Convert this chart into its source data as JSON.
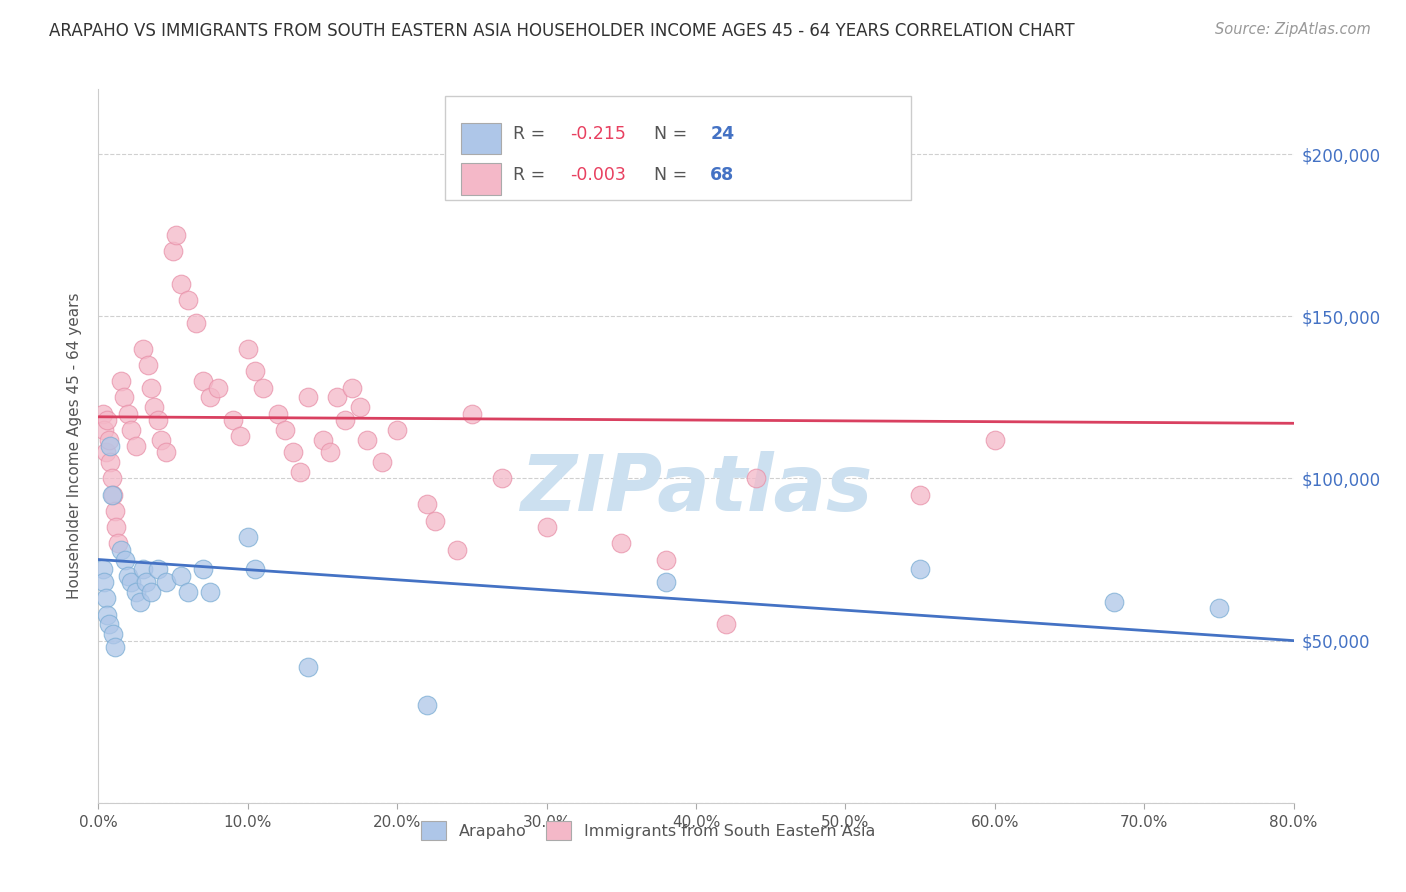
{
  "title": "ARAPAHO VS IMMIGRANTS FROM SOUTH EASTERN ASIA HOUSEHOLDER INCOME AGES 45 - 64 YEARS CORRELATION CHART",
  "source": "Source: ZipAtlas.com",
  "ylabel": "Householder Income Ages 45 - 64 years",
  "xlabel_ticks": [
    "0.0%",
    "10.0%",
    "20.0%",
    "30.0%",
    "40.0%",
    "50.0%",
    "60.0%",
    "70.0%",
    "80.0%"
  ],
  "xlabel_vals": [
    0,
    10,
    20,
    30,
    40,
    50,
    60,
    70,
    80
  ],
  "ytick_vals": [
    0,
    50000,
    100000,
    150000,
    200000
  ],
  "right_ytick_labels": [
    "$50,000",
    "$100,000",
    "$150,000",
    "$200,000"
  ],
  "right_ytick_vals": [
    50000,
    100000,
    150000,
    200000
  ],
  "xlim": [
    0,
    80
  ],
  "ylim": [
    0,
    220000
  ],
  "arapaho_points": [
    [
      0.3,
      72000
    ],
    [
      0.4,
      68000
    ],
    [
      0.5,
      63000
    ],
    [
      0.6,
      58000
    ],
    [
      0.7,
      55000
    ],
    [
      0.8,
      110000
    ],
    [
      0.9,
      95000
    ],
    [
      1.0,
      52000
    ],
    [
      1.1,
      48000
    ],
    [
      1.5,
      78000
    ],
    [
      1.8,
      75000
    ],
    [
      2.0,
      70000
    ],
    [
      2.2,
      68000
    ],
    [
      2.5,
      65000
    ],
    [
      2.8,
      62000
    ],
    [
      3.0,
      72000
    ],
    [
      3.2,
      68000
    ],
    [
      3.5,
      65000
    ],
    [
      4.0,
      72000
    ],
    [
      4.5,
      68000
    ],
    [
      5.5,
      70000
    ],
    [
      6.0,
      65000
    ],
    [
      7.0,
      72000
    ],
    [
      7.5,
      65000
    ],
    [
      10.0,
      82000
    ],
    [
      10.5,
      72000
    ],
    [
      14.0,
      42000
    ],
    [
      22.0,
      30000
    ],
    [
      38.0,
      68000
    ],
    [
      55.0,
      72000
    ],
    [
      68.0,
      62000
    ],
    [
      75.0,
      60000
    ]
  ],
  "sea_points": [
    [
      0.3,
      120000
    ],
    [
      0.4,
      115000
    ],
    [
      0.5,
      108000
    ],
    [
      0.6,
      118000
    ],
    [
      0.7,
      112000
    ],
    [
      0.8,
      105000
    ],
    [
      0.9,
      100000
    ],
    [
      1.0,
      95000
    ],
    [
      1.1,
      90000
    ],
    [
      1.2,
      85000
    ],
    [
      1.3,
      80000
    ],
    [
      1.5,
      130000
    ],
    [
      1.7,
      125000
    ],
    [
      2.0,
      120000
    ],
    [
      2.2,
      115000
    ],
    [
      2.5,
      110000
    ],
    [
      3.0,
      140000
    ],
    [
      3.3,
      135000
    ],
    [
      3.5,
      128000
    ],
    [
      3.7,
      122000
    ],
    [
      4.0,
      118000
    ],
    [
      4.2,
      112000
    ],
    [
      4.5,
      108000
    ],
    [
      5.0,
      170000
    ],
    [
      5.2,
      175000
    ],
    [
      5.5,
      160000
    ],
    [
      6.0,
      155000
    ],
    [
      6.5,
      148000
    ],
    [
      7.0,
      130000
    ],
    [
      7.5,
      125000
    ],
    [
      8.0,
      128000
    ],
    [
      9.0,
      118000
    ],
    [
      9.5,
      113000
    ],
    [
      10.0,
      140000
    ],
    [
      10.5,
      133000
    ],
    [
      11.0,
      128000
    ],
    [
      12.0,
      120000
    ],
    [
      12.5,
      115000
    ],
    [
      13.0,
      108000
    ],
    [
      13.5,
      102000
    ],
    [
      14.0,
      125000
    ],
    [
      15.0,
      112000
    ],
    [
      15.5,
      108000
    ],
    [
      16.0,
      125000
    ],
    [
      16.5,
      118000
    ],
    [
      17.0,
      128000
    ],
    [
      17.5,
      122000
    ],
    [
      18.0,
      112000
    ],
    [
      19.0,
      105000
    ],
    [
      20.0,
      115000
    ],
    [
      22.0,
      92000
    ],
    [
      22.5,
      87000
    ],
    [
      24.0,
      78000
    ],
    [
      25.0,
      120000
    ],
    [
      27.0,
      100000
    ],
    [
      30.0,
      85000
    ],
    [
      35.0,
      80000
    ],
    [
      38.0,
      75000
    ],
    [
      42.0,
      55000
    ],
    [
      44.0,
      100000
    ],
    [
      55.0,
      95000
    ],
    [
      60.0,
      112000
    ]
  ],
  "arapaho_color": "#aec6e8",
  "sea_color": "#f4b8c8",
  "arapaho_edge_color": "#7badd4",
  "sea_edge_color": "#e890a8",
  "arapaho_line_color": "#4472c4",
  "sea_line_color": "#d94060",
  "background_color": "#ffffff",
  "grid_color": "#d0d0d0",
  "title_color": "#333333",
  "source_color": "#999999",
  "right_axis_color": "#4472c4",
  "watermark_color": "#cce0f0",
  "legend_border_color": "#cccccc",
  "r_value_color": "#e84060",
  "n_value_color": "#4472c4",
  "legend_text_color": "#555555"
}
